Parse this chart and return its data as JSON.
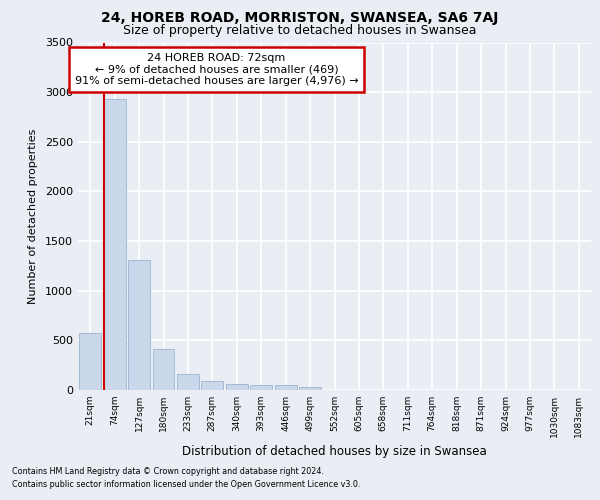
{
  "title": "24, HOREB ROAD, MORRISTON, SWANSEA, SA6 7AJ",
  "subtitle": "Size of property relative to detached houses in Swansea",
  "xlabel": "Distribution of detached houses by size in Swansea",
  "ylabel": "Number of detached properties",
  "categories": [
    "21sqm",
    "74sqm",
    "127sqm",
    "180sqm",
    "233sqm",
    "287sqm",
    "340sqm",
    "393sqm",
    "446sqm",
    "499sqm",
    "552sqm",
    "605sqm",
    "658sqm",
    "711sqm",
    "764sqm",
    "818sqm",
    "871sqm",
    "924sqm",
    "977sqm",
    "1030sqm",
    "1083sqm"
  ],
  "values": [
    575,
    2930,
    1310,
    415,
    160,
    90,
    65,
    55,
    50,
    35,
    0,
    0,
    0,
    0,
    0,
    0,
    0,
    0,
    0,
    0,
    0
  ],
  "bar_color": "#c8d8ea",
  "bar_edge_color": "#9ab4cc",
  "red_line_x": 0.575,
  "annotation_line1": "24 HOREB ROAD: 72sqm",
  "annotation_line2": "← 9% of detached houses are smaller (469)",
  "annotation_line3": "91% of semi-detached houses are larger (4,976) →",
  "annotation_box_color": "#ffffff",
  "annotation_box_edge_color": "#cc0000",
  "ylim": [
    0,
    3500
  ],
  "yticks": [
    0,
    500,
    1000,
    1500,
    2000,
    2500,
    3000,
    3500
  ],
  "bg_color": "#eaeef4",
  "plot_bg_color": "#eaeef4",
  "grid_color": "#ffffff",
  "footer_line1": "Contains HM Land Registry data © Crown copyright and database right 2024.",
  "footer_line2": "Contains public sector information licensed under the Open Government Licence v3.0."
}
